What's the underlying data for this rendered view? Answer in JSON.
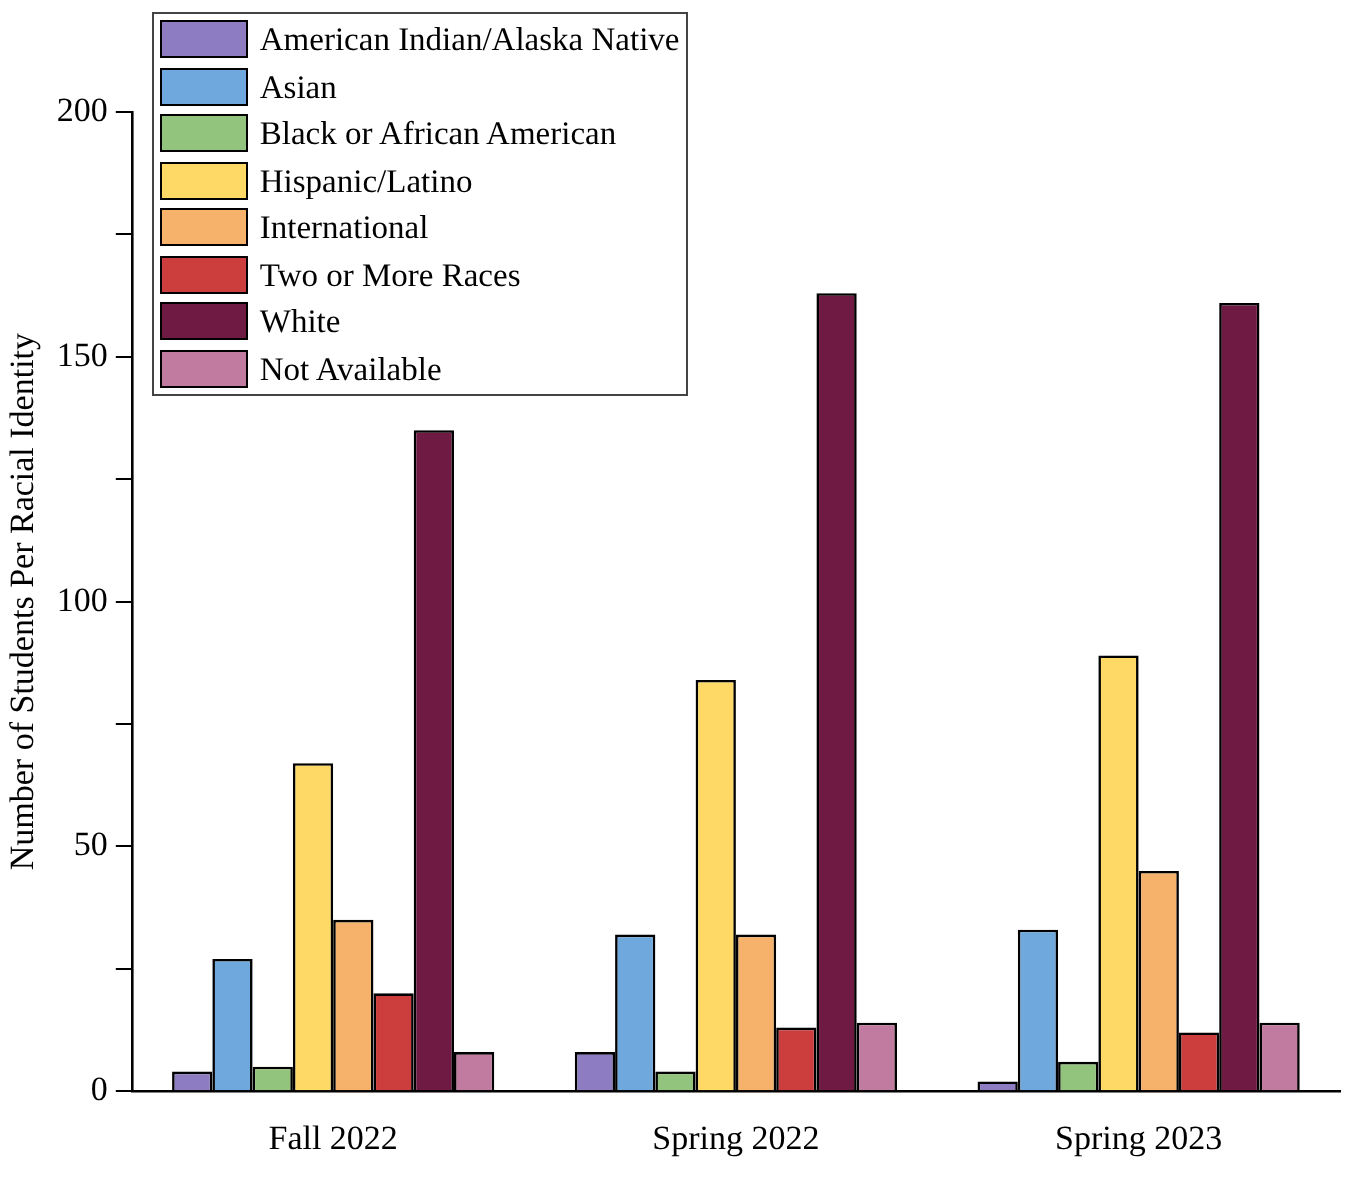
{
  "chart_data": {
    "type": "bar",
    "ylabel": "Number of Students Per Racial Identity",
    "categories": [
      "Fall 2022",
      "Spring 2022",
      "Spring 2023"
    ],
    "series": [
      {
        "name": "American Indian/Alaska Native",
        "color": "#8e7cc3",
        "values": [
          4,
          8,
          2
        ]
      },
      {
        "name": "Asian",
        "color": "#6fa8dc",
        "values": [
          27,
          32,
          33
        ]
      },
      {
        "name": "Black or African American",
        "color": "#93c47d",
        "values": [
          5,
          4,
          6
        ]
      },
      {
        "name": "Hispanic/Latino",
        "color": "#ffd966",
        "values": [
          67,
          84,
          89
        ]
      },
      {
        "name": "International",
        "color": "#f6b26b",
        "values": [
          35,
          32,
          45
        ]
      },
      {
        "name": "Two or More Races",
        "color": "#cc3e3e",
        "values": [
          20,
          13,
          12
        ]
      },
      {
        "name": "White",
        "color": "#6f1a42",
        "values": [
          135,
          163,
          161
        ]
      },
      {
        "name": "Not Available",
        "color": "#c27ba0",
        "values": [
          8,
          14,
          14
        ]
      }
    ],
    "ylim": [
      0,
      200
    ],
    "yticks": [
      0,
      {
        "value": 25,
        "label": null
      },
      50,
      {
        "value": 75,
        "label": null
      },
      100,
      {
        "value": 125,
        "label": null
      },
      150,
      {
        "value": 175,
        "label": null
      },
      200
    ],
    "grid": false,
    "legend": "top left"
  }
}
